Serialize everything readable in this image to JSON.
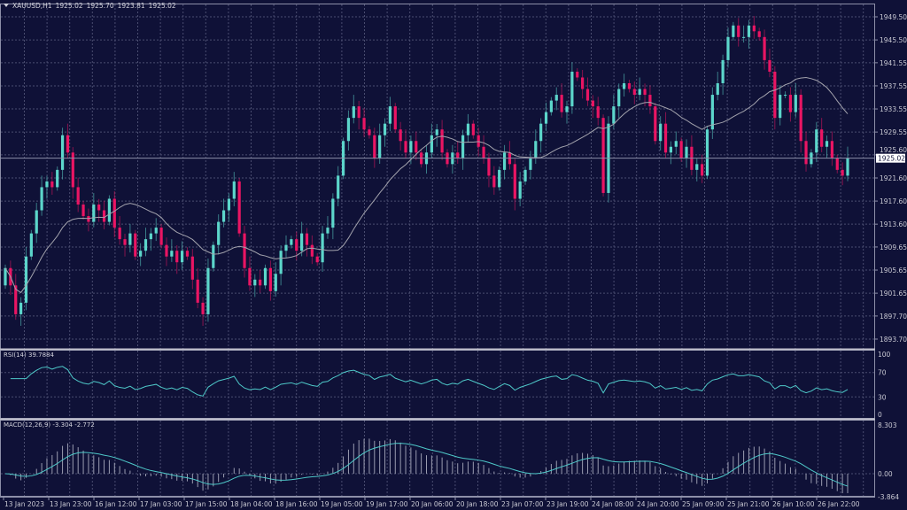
{
  "header": {
    "symbol": "XAUUSD,H1",
    "open": "1925.02",
    "high": "1925.70",
    "low": "1923.81",
    "close": "1925.02"
  },
  "current_price_label": "1925.02",
  "rsi": {
    "label": "RSI(14)",
    "value": "39.7884",
    "ticks": [
      "100",
      "70",
      "30",
      "0"
    ]
  },
  "macd": {
    "label": "MACD(12,26,9)",
    "main": "-3.304",
    "signal": "-2.772",
    "ticks": [
      "8.303",
      "0.00",
      "-3.864"
    ]
  },
  "colors": {
    "background": "#0f1137",
    "bull": "#5cd6cb",
    "bear": "#ea1563",
    "moving_average": "#a3a3ad",
    "indicator_line": "#4ec8c8",
    "grid": "#4a4d70"
  },
  "chart_data": {
    "type": "candlestick",
    "title": "XAUUSD,H1",
    "ylim": [
      1891.5,
      1951.5
    ],
    "grid": true,
    "price_ticks": [
      "1949.50",
      "1945.50",
      "1941.55",
      "1937.55",
      "1933.55",
      "1929.55",
      "1925.60",
      "1921.60",
      "1917.60",
      "1913.60",
      "1909.65",
      "1905.65",
      "1901.65",
      "1897.70",
      "1893.70"
    ],
    "x_tick_labels": [
      "13 Jan 2023",
      "13 Jan 23:00",
      "16 Jan 12:00",
      "17 Jan 03:00",
      "17 Jan 15:00",
      "18 Jan 04:00",
      "18 Jan 16:00",
      "19 Jan 05:00",
      "19 Jan 17:00",
      "20 Jan 06:00",
      "20 Jan 18:00",
      "23 Jan 07:00",
      "23 Jan 19:00",
      "24 Jan 08:00",
      "24 Jan 20:00",
      "25 Jan 09:00",
      "25 Jan 21:00",
      "26 Jan 10:00",
      "26 Jan 22:00"
    ],
    "first_open": 1903,
    "close": [
      1906,
      1903,
      1898,
      1900,
      1908,
      1912,
      1916,
      1920,
      1921,
      1920,
      1923,
      1929,
      1926,
      1920,
      1917,
      1915,
      1914,
      1917,
      1916,
      1914,
      1918,
      1913,
      1911,
      1910,
      1912,
      1908,
      1909,
      1911,
      1912,
      1913,
      1910,
      1908,
      1909,
      1907,
      1909,
      1908,
      1904,
      1900,
      1898,
      1906,
      1910,
      1914,
      1916,
      1918,
      1921,
      1912,
      1906,
      1903,
      1904,
      1903,
      1906,
      1902,
      1905,
      1909,
      1910,
      1911,
      1909,
      1912,
      1910,
      1908,
      1907,
      1912,
      1913,
      1918,
      1922,
      1928,
      1932,
      1934,
      1932,
      1930,
      1929,
      1925,
      1929,
      1931,
      1934,
      1930,
      1928,
      1926,
      1928,
      1926,
      1924,
      1926,
      1929,
      1930,
      1926,
      1924,
      1926,
      1925,
      1929,
      1931,
      1929,
      1927,
      1925,
      1922,
      1920,
      1923,
      1926,
      1924,
      1918,
      1921,
      1923,
      1925,
      1928,
      1931,
      1933,
      1935,
      1936,
      1933,
      1934,
      1940,
      1939,
      1937,
      1935,
      1934,
      1932,
      1919,
      1931,
      1934,
      1937,
      1938,
      1937,
      1936,
      1937,
      1936,
      1934,
      1928,
      1931,
      1926,
      1927,
      1928,
      1925,
      1927,
      1923,
      1924,
      1922,
      1930,
      1936,
      1938,
      1942,
      1946,
      1948,
      1946,
      1946,
      1948,
      1947,
      1946,
      1942,
      1940,
      1932,
      1936,
      1936,
      1933,
      1936,
      1928,
      1924,
      1926,
      1930,
      1927,
      1928,
      1925,
      1923,
      1922,
      1925.02
    ],
    "rsi_ylim": [
      0,
      100
    ],
    "macd_ylim": [
      -3.864,
      8.303
    ]
  }
}
